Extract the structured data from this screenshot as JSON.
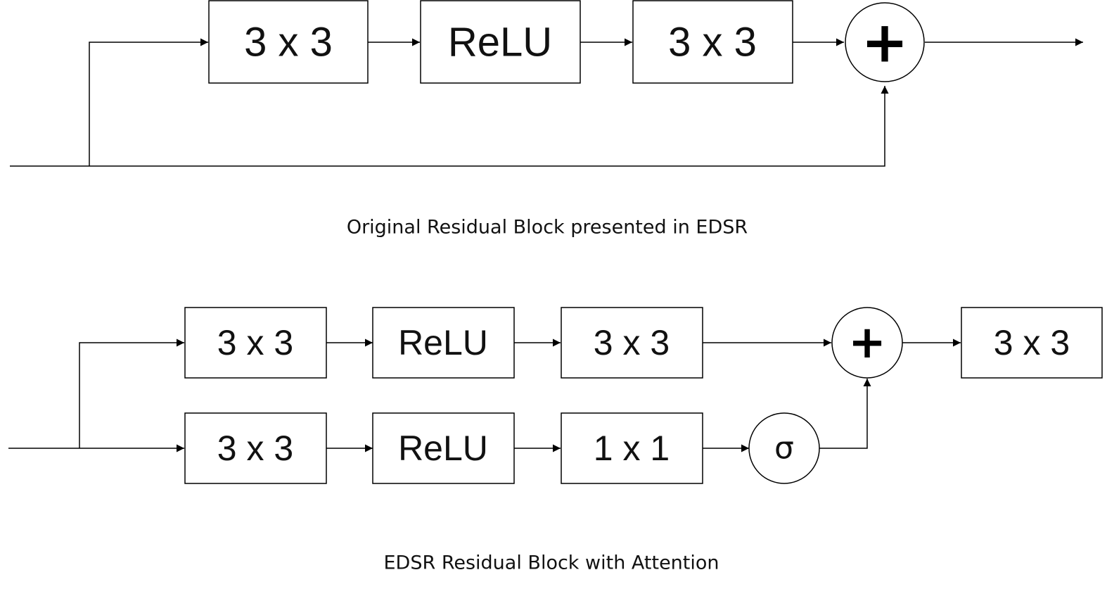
{
  "top_diagram": {
    "blocks": [
      "3 x 3",
      "ReLU",
      "3 x 3"
    ],
    "add_symbol": "+",
    "caption": "Original Residual Block presented in EDSR"
  },
  "bottom_diagram": {
    "main_blocks": [
      "3 x 3",
      "ReLU",
      "3 x 3"
    ],
    "attention_blocks": [
      "3 x 3",
      "ReLU",
      "1 x 1"
    ],
    "sigmoid_symbol": "σ",
    "add_symbol": "+",
    "output_block": "3 x 3",
    "caption": "EDSR Residual Block with Attention"
  }
}
